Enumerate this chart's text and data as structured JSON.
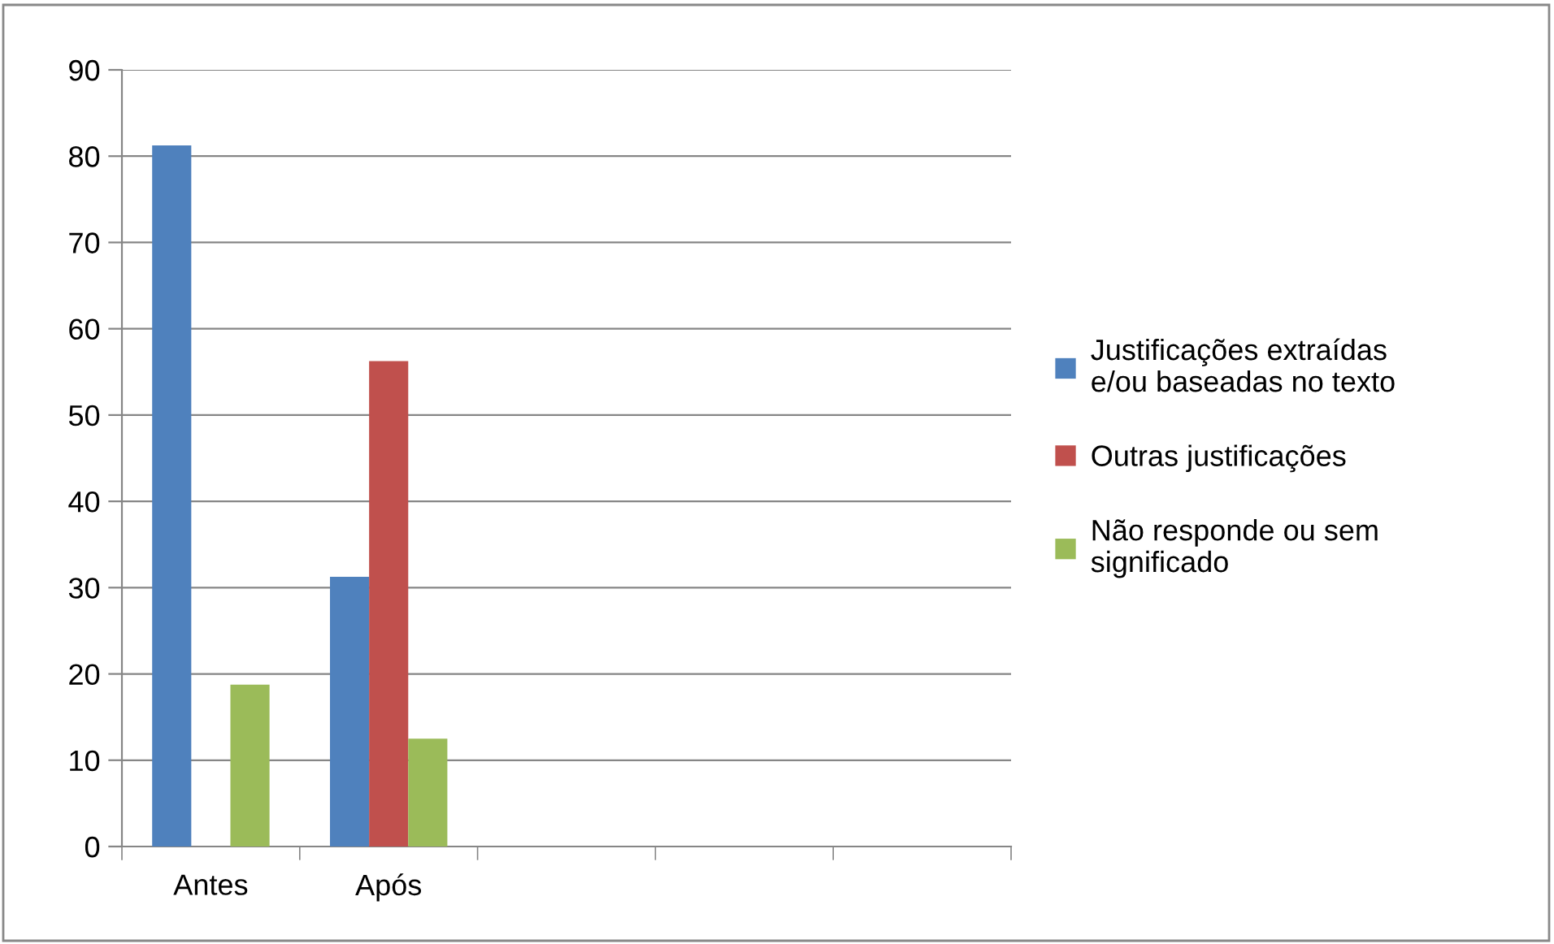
{
  "chart_data": {
    "type": "bar",
    "categories": [
      "Antes",
      "Após",
      null,
      null,
      null
    ],
    "series": [
      {
        "name": "Justificações extraídas e/ou baseadas no texto",
        "color": "#4f81bd",
        "values": [
          81.25,
          31.25,
          null,
          null,
          null
        ]
      },
      {
        "name": "Outras justificações",
        "color": "#c0504d",
        "values": [
          0,
          56.25,
          null,
          null,
          null
        ]
      },
      {
        "name": "Não responde ou sem significado",
        "color": "#9bbb59",
        "values": [
          18.75,
          12.5,
          null,
          null,
          null
        ]
      }
    ],
    "ylim": [
      0,
      90
    ],
    "yticks": [
      0,
      10,
      20,
      30,
      40,
      50,
      60,
      70,
      80,
      90
    ],
    "grid": "y",
    "legend": "right"
  }
}
